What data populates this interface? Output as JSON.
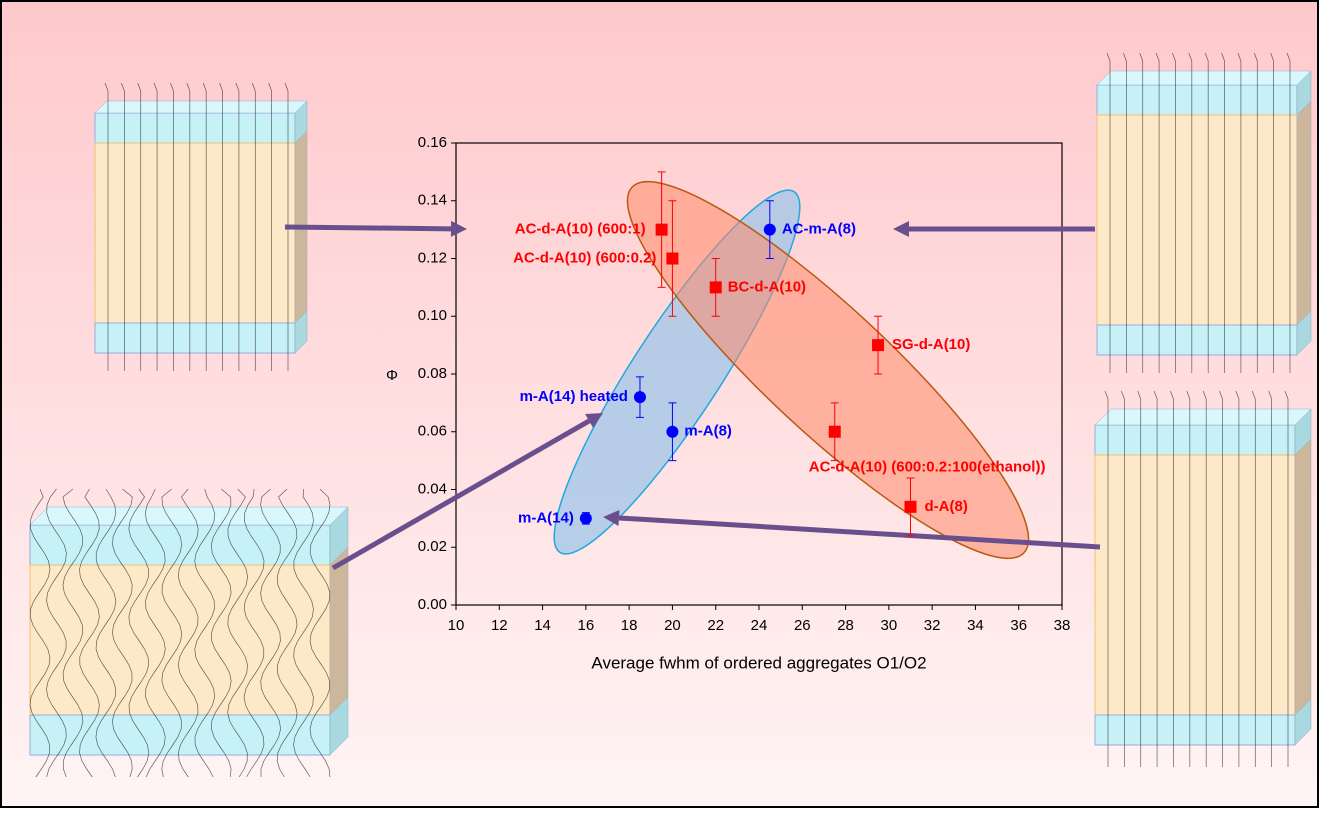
{
  "chart_data": {
    "type": "scatter",
    "x_label": "Average fwhm of ordered aggregates O1/O2",
    "y_label": "Φ",
    "xlim": [
      10,
      38
    ],
    "xticks": [
      10,
      12,
      14,
      16,
      18,
      20,
      22,
      24,
      26,
      28,
      30,
      32,
      34,
      36,
      38
    ],
    "ylim": [
      0,
      0.16
    ],
    "yticks": [
      {
        "value": 0,
        "label": "0.00"
      },
      {
        "value": 0.02,
        "label": "0.02"
      },
      {
        "value": 0.04,
        "label": "0.04"
      },
      {
        "value": 0.06,
        "label": "0.06"
      },
      {
        "value": 0.08,
        "label": "0.08"
      },
      {
        "value": 0.1,
        "label": "0.10"
      },
      {
        "value": 0.12,
        "label": "0.12"
      },
      {
        "value": 0.14,
        "label": "0.14"
      },
      {
        "value": 0.16,
        "label": "0.16"
      }
    ],
    "series": [
      {
        "color": "#0000ff",
        "marker": "circle",
        "labels": [
          "AC-m-A(8)",
          "m-A(14) heated",
          "m-A(8)",
          "m-A(14)"
        ],
        "x": [
          24.5,
          18.5,
          20,
          16
        ],
        "values": [
          0.13,
          0.072,
          0.06,
          0.03
        ],
        "errors": [
          0.01,
          0.007,
          0.01,
          0.002
        ]
      },
      {
        "color": "#ff0000",
        "marker": "square",
        "labels": [
          "AC-d-A(10) (600:1)",
          "AC-d-A(10) (600:0.2)",
          "BC-d-A(10)",
          "SG-d-A(10)",
          "AC-d-A(10) (600:0.2:100(ethanol))",
          "d-A(8)"
        ],
        "x": [
          19.5,
          20,
          22,
          29.5,
          27.5,
          31
        ],
        "values": [
          0.13,
          0.12,
          0.11,
          0.09,
          0.06,
          0.034
        ],
        "errors": [
          0.02,
          0.02,
          0.01,
          0.01,
          0.01,
          0.01
        ]
      }
    ]
  }
}
